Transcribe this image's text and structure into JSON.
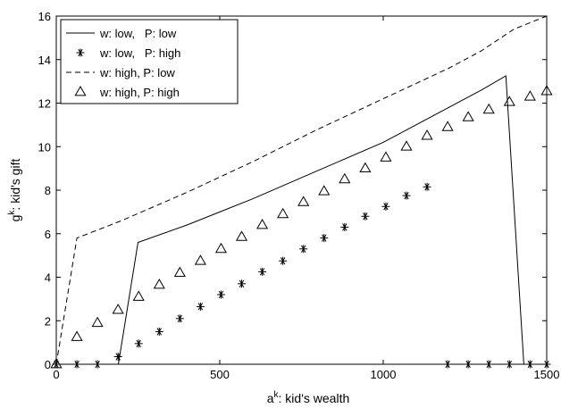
{
  "chart_data": {
    "type": "line",
    "xlabel": "a^k: kid's wealth",
    "xlabel_parts": {
      "base": "a",
      "sup": "k",
      "rest": ": kid's wealth"
    },
    "ylabel": "g^k: kid's gift",
    "ylabel_parts": {
      "base": "g",
      "sup": "k",
      "rest": ": kid's gift"
    },
    "xlim": [
      0,
      1500
    ],
    "ylim": [
      0,
      16
    ],
    "xticks": [
      0,
      500,
      1000,
      1500
    ],
    "yticks": [
      0,
      2,
      4,
      6,
      8,
      10,
      12,
      14,
      16
    ],
    "grid": false,
    "legend_position": "top-left",
    "series": [
      {
        "name": "w: low,   P: low",
        "style": "solid",
        "x": [
          0,
          190,
          250,
          400,
          600,
          800,
          1000,
          1100,
          1200,
          1300,
          1375,
          1430
        ],
        "y": [
          0,
          0,
          5.6,
          6.4,
          7.6,
          8.9,
          10.2,
          11.0,
          11.8,
          12.6,
          13.25,
          0
        ]
      },
      {
        "name": "w: low,   P: high",
        "style": "star",
        "x": [
          0,
          63,
          126,
          189,
          252,
          315,
          378,
          441,
          504,
          567,
          630,
          693,
          756,
          819,
          882,
          945,
          1008,
          1071,
          1134,
          1197,
          1260,
          1323,
          1386,
          1449,
          1500
        ],
        "y": [
          0,
          0,
          0,
          0.35,
          0.95,
          1.5,
          2.1,
          2.65,
          3.2,
          3.7,
          4.25,
          4.75,
          5.3,
          5.8,
          6.3,
          6.8,
          7.25,
          7.75,
          8.15,
          0,
          0,
          0,
          0,
          0,
          0
        ]
      },
      {
        "name": "w: high, P: low",
        "style": "dashed",
        "x": [
          0,
          63,
          200,
          400,
          600,
          800,
          1000,
          1200,
          1300,
          1400,
          1500
        ],
        "y": [
          0,
          5.8,
          6.6,
          7.9,
          9.3,
          10.8,
          12.2,
          13.6,
          14.4,
          15.4,
          16.0
        ]
      },
      {
        "name": "w: high, P: high",
        "style": "triangle",
        "x": [
          0,
          63,
          126,
          189,
          252,
          315,
          378,
          441,
          504,
          567,
          630,
          693,
          756,
          819,
          882,
          945,
          1008,
          1071,
          1134,
          1197,
          1260,
          1323,
          1386,
          1449,
          1500
        ],
        "y": [
          0,
          1.25,
          1.9,
          2.5,
          3.1,
          3.65,
          4.2,
          4.75,
          5.3,
          5.85,
          6.4,
          6.9,
          7.45,
          7.95,
          8.5,
          9.0,
          9.5,
          10.0,
          10.5,
          10.9,
          11.35,
          11.7,
          12.05,
          12.3,
          12.55
        ]
      }
    ]
  }
}
